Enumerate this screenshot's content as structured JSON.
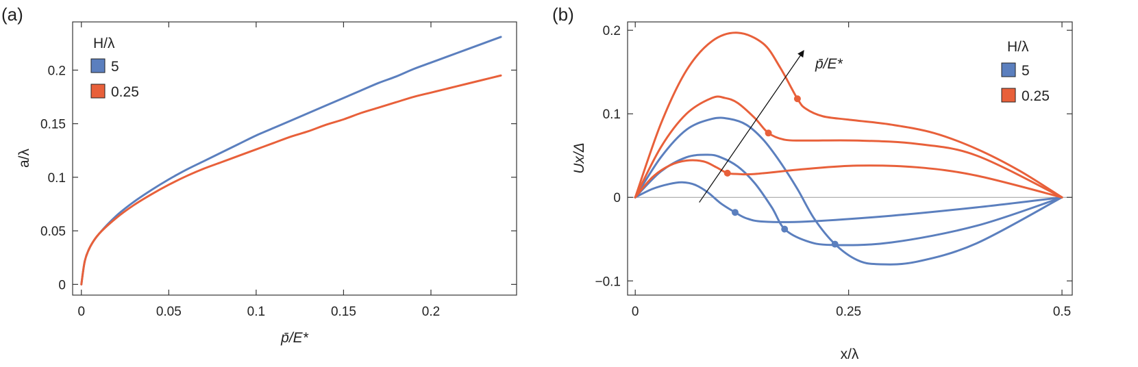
{
  "chart_data": [
    {
      "type": "line",
      "panel_label": "(a)",
      "xlabel": "p̄/E*",
      "ylabel": "a/λ",
      "xlim": [
        -0.005,
        0.249
      ],
      "ylim": [
        -0.01,
        0.245
      ],
      "xticks": [
        0,
        0.05,
        0.1,
        0.15,
        0.2
      ],
      "xtick_labels": [
        "0",
        "0.05",
        "0.1",
        "0.15",
        "0.2"
      ],
      "yticks": [
        0,
        0.05,
        0.1,
        0.15,
        0.2
      ],
      "ytick_labels": [
        "0",
        "0.05",
        "0.1",
        "0.15",
        "0.2"
      ],
      "grid": false,
      "legend": {
        "title": "H/λ",
        "placement": "top-left"
      },
      "series": [
        {
          "name": "5",
          "color": "#5b7fbe",
          "x": [
            0,
            0.002,
            0.005,
            0.01,
            0.02,
            0.03,
            0.04,
            0.05,
            0.06,
            0.07,
            0.08,
            0.09,
            0.1,
            0.11,
            0.12,
            0.13,
            0.14,
            0.15,
            0.16,
            0.17,
            0.18,
            0.19,
            0.2,
            0.21,
            0.22,
            0.23,
            0.24
          ],
          "y": [
            0,
            0.022,
            0.035,
            0.047,
            0.064,
            0.077,
            0.088,
            0.098,
            0.107,
            0.115,
            0.123,
            0.131,
            0.139,
            0.146,
            0.153,
            0.16,
            0.167,
            0.174,
            0.181,
            0.188,
            0.194,
            0.201,
            0.207,
            0.213,
            0.219,
            0.225,
            0.231
          ]
        },
        {
          "name": "0.25",
          "color": "#e8603a",
          "x": [
            0,
            0.002,
            0.005,
            0.01,
            0.02,
            0.03,
            0.04,
            0.05,
            0.06,
            0.07,
            0.08,
            0.09,
            0.1,
            0.11,
            0.12,
            0.13,
            0.14,
            0.15,
            0.16,
            0.17,
            0.18,
            0.19,
            0.2,
            0.21,
            0.22,
            0.23,
            0.24
          ],
          "y": [
            0,
            0.022,
            0.035,
            0.047,
            0.062,
            0.074,
            0.084,
            0.093,
            0.101,
            0.108,
            0.114,
            0.12,
            0.126,
            0.132,
            0.138,
            0.143,
            0.149,
            0.154,
            0.16,
            0.165,
            0.17,
            0.175,
            0.179,
            0.183,
            0.187,
            0.191,
            0.195
          ]
        }
      ]
    },
    {
      "type": "line",
      "panel_label": "(b)",
      "xlabel": "x/λ",
      "ylabel": "Ux/Δ",
      "xlim": [
        -0.009,
        0.512
      ],
      "ylim": [
        -0.117,
        0.21
      ],
      "xticks": [
        0,
        0.25,
        0.5
      ],
      "xtick_labels": [
        "0",
        "0.25",
        "0.5"
      ],
      "yticks": [
        -0.1,
        0,
        0.1,
        0.2
      ],
      "ytick_labels": [
        "−0.1",
        "0",
        "0.1",
        "0.2"
      ],
      "grid": false,
      "legend": {
        "title": "H/λ",
        "placement": "top-right"
      },
      "annotation": "p̄/E*",
      "annotation_arrow": {
        "from": [
          0.075,
          -0.006
        ],
        "to": [
          0.197,
          0.175
        ]
      },
      "series": [
        {
          "name": "5",
          "color": "#5b7fbe",
          "curves": [
            {
              "x": [
                0,
                0.02,
                0.04,
                0.055,
                0.07,
                0.085,
                0.1,
                0.117,
                0.13,
                0.15,
                0.2,
                0.3,
                0.4,
                0.5
              ],
              "y": [
                0,
                0.01,
                0.016,
                0.018,
                0.015,
                0.006,
                -0.007,
                -0.018,
                -0.025,
                -0.029,
                -0.029,
                -0.022,
                -0.012,
                0
              ],
              "marker": {
                "x": 0.117,
                "y": -0.018
              }
            },
            {
              "x": [
                0,
                0.03,
                0.06,
                0.085,
                0.1,
                0.12,
                0.14,
                0.16,
                0.175,
                0.2,
                0.23,
                0.3,
                0.4,
                0.5
              ],
              "y": [
                0,
                0.031,
                0.048,
                0.051,
                0.048,
                0.037,
                0.017,
                -0.012,
                -0.038,
                -0.052,
                -0.057,
                -0.054,
                -0.034,
                0
              ],
              "marker": {
                "x": 0.175,
                "y": -0.038
              }
            },
            {
              "x": [
                0,
                0.03,
                0.06,
                0.09,
                0.11,
                0.13,
                0.15,
                0.17,
                0.19,
                0.21,
                0.234,
                0.26,
                0.285,
                0.33,
                0.4,
                0.5
              ],
              "y": [
                0,
                0.048,
                0.081,
                0.094,
                0.094,
                0.087,
                0.069,
                0.042,
                0.01,
                -0.026,
                -0.056,
                -0.075,
                -0.08,
                -0.077,
                -0.055,
                0
              ],
              "marker": {
                "x": 0.234,
                "y": -0.056
              }
            }
          ]
        },
        {
          "name": "0.25",
          "color": "#e8603a",
          "curves": [
            {
              "x": [
                0,
                0.02,
                0.04,
                0.06,
                0.08,
                0.095,
                0.108,
                0.12,
                0.14,
                0.2,
                0.26,
                0.33,
                0.4,
                0.5
              ],
              "y": [
                0,
                0.024,
                0.038,
                0.044,
                0.043,
                0.036,
                0.029,
                0.028,
                0.028,
                0.034,
                0.038,
                0.036,
                0.026,
                0
              ],
              "marker": {
                "x": 0.108,
                "y": 0.029
              }
            },
            {
              "x": [
                0,
                0.03,
                0.06,
                0.09,
                0.105,
                0.12,
                0.14,
                0.156,
                0.175,
                0.2,
                0.26,
                0.33,
                0.4,
                0.5
              ],
              "y": [
                0,
                0.06,
                0.1,
                0.119,
                0.119,
                0.113,
                0.095,
                0.077,
                0.069,
                0.068,
                0.068,
                0.064,
                0.05,
                0
              ],
              "marker": {
                "x": 0.156,
                "y": 0.077
              }
            },
            {
              "x": [
                0,
                0.03,
                0.06,
                0.09,
                0.12,
                0.15,
                0.17,
                0.19,
                0.2,
                0.22,
                0.25,
                0.3,
                0.35,
                0.4,
                0.45,
                0.5
              ],
              "y": [
                0,
                0.088,
                0.152,
                0.187,
                0.197,
                0.184,
                0.155,
                0.118,
                0.106,
                0.097,
                0.093,
                0.087,
                0.077,
                0.058,
                0.032,
                0
              ],
              "marker": {
                "x": 0.19,
                "y": 0.118
              }
            }
          ]
        }
      ]
    }
  ]
}
